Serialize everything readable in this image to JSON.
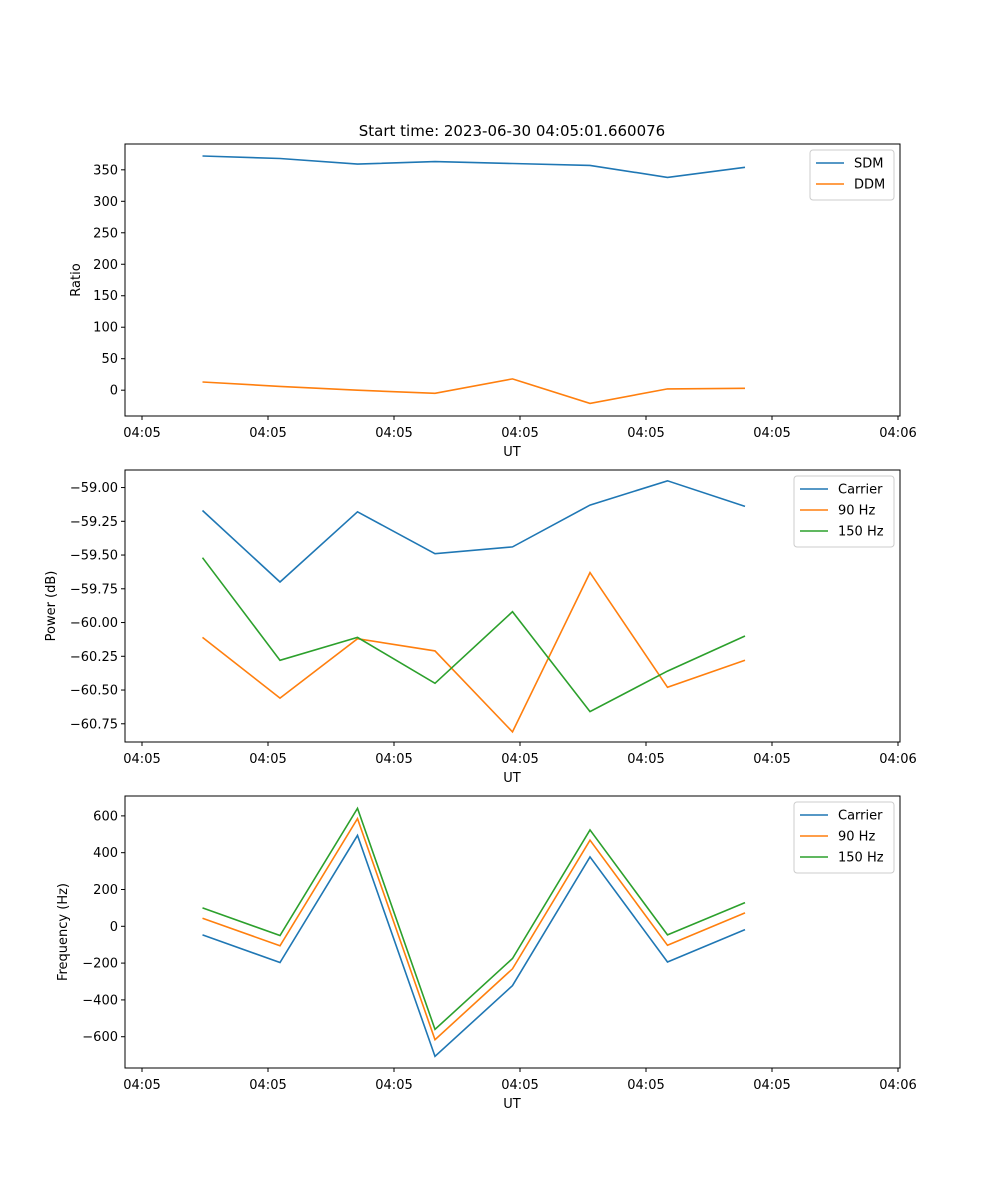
{
  "figure": {
    "title": "Start time: 2023-06-30 04:05:01.660076"
  },
  "chart_data": [
    {
      "type": "line",
      "xlabel": "UT",
      "ylabel": "Ratio",
      "x_tick_labels": [
        "04:05",
        "04:05",
        "04:05",
        "04:05",
        "04:05",
        "04:05",
        "04:06"
      ],
      "y_ticks": [
        0,
        50,
        100,
        150,
        200,
        250,
        300,
        350
      ],
      "y_tick_labels": [
        "0",
        "50",
        "100",
        "150",
        "200",
        "250",
        "300",
        "350"
      ],
      "ylim": [
        -41,
        391
      ],
      "x": [
        1,
        2,
        3,
        4,
        5,
        6,
        7,
        8
      ],
      "xlim": [
        0,
        10
      ],
      "grid": false,
      "legend": "top-right",
      "series": [
        {
          "name": "SDM",
          "color": "#1f77b4",
          "values": [
            372,
            368,
            359,
            363,
            360,
            357,
            338,
            354
          ]
        },
        {
          "name": "DDM",
          "color": "#ff7f0e",
          "values": [
            13,
            6,
            0,
            -5,
            18,
            -21,
            2,
            3
          ]
        }
      ]
    },
    {
      "type": "line",
      "xlabel": "UT",
      "ylabel": "Power (dB)",
      "x_tick_labels": [
        "04:05",
        "04:05",
        "04:05",
        "04:05",
        "04:05",
        "04:05",
        "04:06"
      ],
      "y_ticks": [
        -60.75,
        -60.5,
        -60.25,
        -60.0,
        -59.75,
        -59.5,
        -59.25,
        -59.0
      ],
      "y_tick_labels": [
        "−60.75",
        "−60.50",
        "−60.25",
        "−60.00",
        "−59.75",
        "−59.50",
        "−59.25",
        "−59.00"
      ],
      "ylim": [
        -60.885,
        -58.87
      ],
      "x": [
        1,
        2,
        3,
        4,
        5,
        6,
        7,
        8
      ],
      "xlim": [
        0,
        10
      ],
      "grid": false,
      "legend": "top-right",
      "series": [
        {
          "name": "Carrier",
          "color": "#1f77b4",
          "values": [
            -59.17,
            -59.7,
            -59.18,
            -59.49,
            -59.44,
            -59.13,
            -58.95,
            -59.14
          ]
        },
        {
          "name": "90 Hz",
          "color": "#ff7f0e",
          "values": [
            -60.11,
            -60.56,
            -60.12,
            -60.21,
            -60.81,
            -59.63,
            -60.48,
            -60.28
          ]
        },
        {
          "name": "150 Hz",
          "color": "#2ca02c",
          "values": [
            -59.52,
            -60.28,
            -60.11,
            -60.45,
            -59.92,
            -60.66,
            -60.36,
            -60.1
          ]
        }
      ]
    },
    {
      "type": "line",
      "xlabel": "UT",
      "ylabel": "Frequency (Hz)",
      "x_tick_labels": [
        "04:05",
        "04:05",
        "04:05",
        "04:05",
        "04:05",
        "04:05",
        "04:06"
      ],
      "y_ticks": [
        -600,
        -400,
        -200,
        0,
        200,
        400,
        600
      ],
      "y_tick_labels": [
        "−600",
        "−400",
        "−200",
        "0",
        "200",
        "400",
        "600"
      ],
      "ylim": [
        -770,
        708
      ],
      "x": [
        1,
        2,
        3,
        4,
        5,
        6,
        7,
        8
      ],
      "xlim": [
        0,
        10
      ],
      "grid": false,
      "legend": "top-right",
      "series": [
        {
          "name": "Carrier",
          "color": "#1f77b4",
          "values": [
            -47,
            -197,
            494,
            -707,
            -322,
            377,
            -194,
            -18
          ]
        },
        {
          "name": "90 Hz",
          "color": "#ff7f0e",
          "values": [
            44,
            -106,
            585,
            -616,
            -231,
            468,
            -103,
            73
          ]
        },
        {
          "name": "150 Hz",
          "color": "#2ca02c",
          "values": [
            100,
            -50,
            641,
            -560,
            -175,
            524,
            -47,
            129
          ]
        }
      ]
    }
  ]
}
